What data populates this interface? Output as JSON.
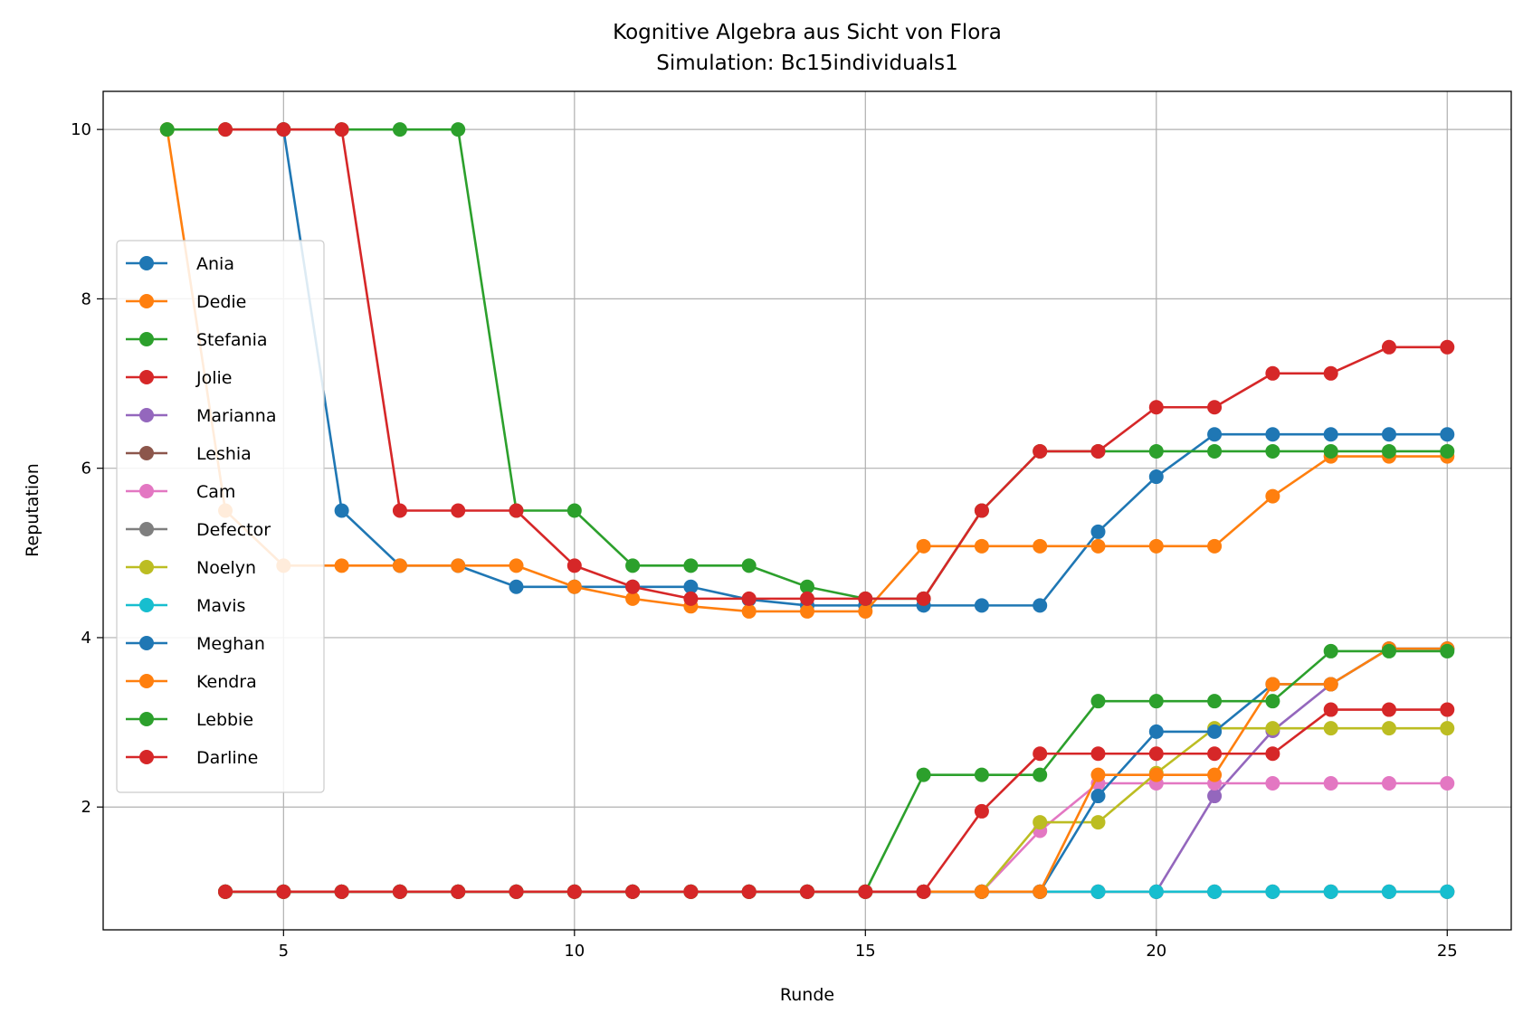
{
  "chart_data": {
    "type": "line",
    "title": "Kognitive Algebra aus Sicht von Flora",
    "subtitle": "Simulation: Bc15individuals1",
    "xlabel": "Runde",
    "ylabel": "Reputation",
    "xlim": [
      1.9,
      26.1
    ],
    "ylim": [
      0.55,
      10.45
    ],
    "xticks": [
      5,
      10,
      15,
      20,
      25
    ],
    "yticks": [
      2,
      4,
      6,
      8,
      10
    ],
    "grid": true,
    "legend_position": "center-left",
    "series": [
      {
        "name": "Ania",
        "color": "#1f77b4",
        "x": [
          5,
          6,
          7,
          8,
          9,
          10,
          11,
          12,
          13,
          14,
          15,
          16,
          17,
          18,
          19,
          20,
          21,
          22,
          23,
          24,
          25
        ],
        "y": [
          10,
          5.5,
          4.85,
          4.85,
          4.6,
          4.6,
          4.6,
          4.6,
          4.45,
          4.38,
          4.38,
          4.38,
          4.38,
          4.38,
          5.25,
          5.9,
          6.4,
          6.4,
          6.4,
          6.4,
          6.4
        ]
      },
      {
        "name": "Dedie",
        "color": "#ff7f0e",
        "x": [
          3,
          4,
          5,
          6,
          7,
          8,
          9,
          10,
          11,
          12,
          13,
          14,
          15,
          16,
          17,
          18,
          19,
          20,
          21,
          22,
          23,
          24,
          25
        ],
        "y": [
          10,
          5.5,
          4.85,
          4.85,
          4.85,
          4.85,
          4.85,
          4.6,
          4.46,
          4.37,
          4.31,
          4.31,
          4.31,
          5.08,
          5.08,
          5.08,
          5.08,
          5.08,
          5.08,
          5.67,
          6.14,
          6.14,
          6.14
        ]
      },
      {
        "name": "Stefania",
        "color": "#2ca02c",
        "x": [
          3,
          4,
          5,
          6,
          7,
          8,
          9,
          10,
          11,
          12,
          13,
          14,
          15,
          16,
          17,
          18,
          19,
          20,
          21,
          22,
          23,
          24,
          25
        ],
        "y": [
          10,
          10,
          10,
          10,
          10,
          10,
          5.5,
          5.5,
          4.85,
          4.85,
          4.85,
          4.6,
          4.46,
          4.46,
          5.5,
          6.2,
          6.2,
          6.2,
          6.2,
          6.2,
          6.2,
          6.2,
          6.2
        ]
      },
      {
        "name": "Jolie",
        "color": "#d62728",
        "x": [
          4,
          5,
          6,
          7,
          8,
          9,
          10,
          11,
          12,
          13,
          14,
          15,
          16,
          17,
          18,
          19,
          20,
          21,
          22,
          23,
          24,
          25
        ],
        "y": [
          10,
          10,
          10,
          5.5,
          5.5,
          5.5,
          4.85,
          4.6,
          4.46,
          4.46,
          4.46,
          4.46,
          4.46,
          5.5,
          6.2,
          6.2,
          6.72,
          6.72,
          7.12,
          7.12,
          7.43,
          7.43
        ]
      },
      {
        "name": "Marianna",
        "color": "#9467bd",
        "x": [
          4,
          5,
          6,
          7,
          8,
          9,
          10,
          11,
          12,
          13,
          14,
          15,
          16,
          17,
          18,
          19,
          20,
          21,
          22,
          23,
          24,
          25
        ],
        "y": [
          1,
          1,
          1,
          1,
          1,
          1,
          1,
          1,
          1,
          1,
          1,
          1,
          1,
          1,
          1,
          1,
          1,
          2.13,
          2.9,
          3.45,
          3.87,
          3.87
        ]
      },
      {
        "name": "Leshia",
        "color": "#8c564b",
        "x": [
          4,
          5,
          6,
          7,
          8,
          9,
          10,
          11,
          12,
          13,
          14,
          15,
          16,
          17,
          18,
          19,
          20,
          21,
          22,
          23,
          24,
          25
        ],
        "y": [
          1,
          1,
          1,
          1,
          1,
          1,
          1,
          1,
          1,
          1,
          1,
          1,
          1,
          1,
          1,
          1,
          1,
          1,
          1,
          1,
          1,
          1
        ]
      },
      {
        "name": "Cam",
        "color": "#e377c2",
        "x": [
          4,
          5,
          6,
          7,
          8,
          9,
          10,
          11,
          12,
          13,
          14,
          15,
          16,
          17,
          18,
          19,
          20,
          21,
          22,
          23,
          24,
          25
        ],
        "y": [
          1,
          1,
          1,
          1,
          1,
          1,
          1,
          1,
          1,
          1,
          1,
          1,
          1,
          1,
          1.72,
          2.28,
          2.28,
          2.28,
          2.28,
          2.28,
          2.28,
          2.28
        ]
      },
      {
        "name": "Defector",
        "color": "#7f7f7f",
        "x": [
          4,
          5,
          6,
          7,
          8,
          9,
          10,
          11,
          12,
          13,
          14,
          15,
          16,
          17,
          18,
          19,
          20,
          21,
          22,
          23,
          24,
          25
        ],
        "y": [
          1,
          1,
          1,
          1,
          1,
          1,
          1,
          1,
          1,
          1,
          1,
          1,
          1,
          1,
          1,
          1,
          1,
          1,
          1,
          1,
          1,
          1
        ]
      },
      {
        "name": "Noelyn",
        "color": "#bcbd22",
        "x": [
          4,
          5,
          6,
          7,
          8,
          9,
          10,
          11,
          12,
          13,
          14,
          15,
          16,
          17,
          18,
          19,
          20,
          21,
          22,
          23,
          24,
          25
        ],
        "y": [
          1,
          1,
          1,
          1,
          1,
          1,
          1,
          1,
          1,
          1,
          1,
          1,
          1,
          1,
          1.82,
          1.82,
          2.4,
          2.93,
          2.93,
          2.93,
          2.93,
          2.93
        ]
      },
      {
        "name": "Mavis",
        "color": "#17becf",
        "x": [
          4,
          5,
          6,
          7,
          8,
          9,
          10,
          11,
          12,
          13,
          14,
          15,
          16,
          17,
          18,
          19,
          20,
          21,
          22,
          23,
          24,
          25
        ],
        "y": [
          1,
          1,
          1,
          1,
          1,
          1,
          1,
          1,
          1,
          1,
          1,
          1,
          1,
          1,
          1,
          1,
          1,
          1,
          1,
          1,
          1,
          1
        ]
      },
      {
        "name": "Meghan",
        "color": "#1f77b4",
        "x": [
          4,
          5,
          6,
          7,
          8,
          9,
          10,
          11,
          12,
          13,
          14,
          15,
          16,
          17,
          18,
          19,
          20,
          21,
          22,
          23,
          24,
          25
        ],
        "y": [
          1,
          1,
          1,
          1,
          1,
          1,
          1,
          1,
          1,
          1,
          1,
          1,
          1,
          1,
          1,
          2.13,
          2.89,
          2.89,
          3.45,
          3.45,
          3.87,
          3.87
        ]
      },
      {
        "name": "Kendra",
        "color": "#ff7f0e",
        "x": [
          4,
          5,
          6,
          7,
          8,
          9,
          10,
          11,
          12,
          13,
          14,
          15,
          16,
          17,
          18,
          19,
          20,
          21,
          22,
          23,
          24,
          25
        ],
        "y": [
          1,
          1,
          1,
          1,
          1,
          1,
          1,
          1,
          1,
          1,
          1,
          1,
          1,
          1,
          1,
          2.38,
          2.38,
          2.38,
          3.45,
          3.45,
          3.87,
          3.87
        ]
      },
      {
        "name": "Lebbie",
        "color": "#2ca02c",
        "x": [
          4,
          5,
          6,
          7,
          8,
          9,
          10,
          11,
          12,
          13,
          14,
          15,
          16,
          17,
          18,
          19,
          20,
          21,
          22,
          23,
          24,
          25
        ],
        "y": [
          1,
          1,
          1,
          1,
          1,
          1,
          1,
          1,
          1,
          1,
          1,
          1,
          2.38,
          2.38,
          2.38,
          3.25,
          3.25,
          3.25,
          3.25,
          3.84,
          3.84,
          3.84
        ]
      },
      {
        "name": "Darline",
        "color": "#d62728",
        "x": [
          4,
          5,
          6,
          7,
          8,
          9,
          10,
          11,
          12,
          13,
          14,
          15,
          16,
          17,
          18,
          19,
          20,
          21,
          22,
          23,
          24,
          25
        ],
        "y": [
          1,
          1,
          1,
          1,
          1,
          1,
          1,
          1,
          1,
          1,
          1,
          1,
          1,
          1.95,
          2.63,
          2.63,
          2.63,
          2.63,
          2.63,
          3.15,
          3.15,
          3.15
        ]
      }
    ]
  }
}
